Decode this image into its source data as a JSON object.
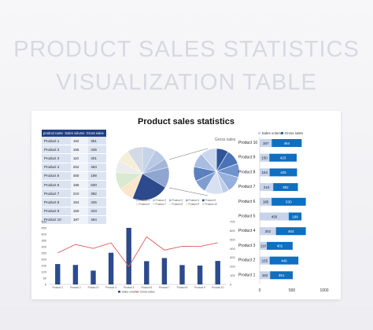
{
  "page_title": [
    "PRODUCT SALES STATISTICS",
    "VISUALIZATION TABLE"
  ],
  "dashboard": {
    "title": "Product sales statistics",
    "table": {
      "headers": [
        "product name",
        "Sales volume",
        "Gross sales"
      ],
      "rows": [
        [
          "Product 1",
          "162",
          "351"
        ],
        [
          "Product 2",
          "155",
          "445"
        ],
        [
          "Product 3",
          "110",
          "401"
        ],
        [
          "Product 4",
          "252",
          "463"
        ],
        [
          "Product 5",
          "450",
          "198"
        ],
        [
          "Product 6",
          "185",
          "530"
        ],
        [
          "Product 7",
          "210",
          "382"
        ],
        [
          "Product 8",
          "154",
          "425"
        ],
        [
          "Product 9",
          "150",
          "423"
        ],
        [
          "Product 10",
          "187",
          "464"
        ]
      ]
    }
  },
  "chart_data": [
    {
      "type": "pie",
      "title": "",
      "categories": [
        "Product 1",
        "Product 2",
        "Product 3",
        "Product 4",
        "Product 5",
        "Product 6",
        "Product 7",
        "Product 8",
        "Product 9",
        "Product 10"
      ],
      "values": [
        162,
        155,
        110,
        252,
        450,
        185,
        210,
        154,
        150,
        187
      ],
      "colors": [
        "#c6d4ea",
        "#b9c8e4",
        "#a4b7da",
        "#8fa6d0",
        "#2c4a8c",
        "#fbe6cc",
        "#d9ead0",
        "#ececec",
        "#f6efd8",
        "#d4d9e6"
      ],
      "legend": "bottom"
    },
    {
      "type": "pie",
      "title": "Gross sales",
      "categories": [
        "Product 1",
        "Product 2",
        "Product 3",
        "Product 4",
        "Product 5",
        "Product 6",
        "Product 7",
        "Product 8",
        "Product 9",
        "Product 10"
      ],
      "values": [
        351,
        445,
        401,
        463,
        198,
        530,
        382,
        425,
        423,
        464
      ],
      "colors": [
        "#2f5597",
        "#4a73b8",
        "#6f93cc",
        "#95b0dc",
        "#bccce9",
        "#d8e1f1",
        "#7f9ed0",
        "#5a80be",
        "#a9bde2",
        "#c9d6ee"
      ]
    },
    {
      "type": "bar",
      "orientation": "horizontal",
      "categories": [
        "Product 10",
        "Product 9",
        "Product 8",
        "Product 7",
        "Product 6",
        "Product 5",
        "Product 4",
        "Product 3",
        "Product 2",
        "Product 1"
      ],
      "series": [
        {
          "name": "Sales volume",
          "values": [
            187,
            150,
            154,
            210,
            185,
            450,
            252,
            110,
            155,
            162
          ],
          "color": "#c6d3ea"
        },
        {
          "name": "Gross sales",
          "values": [
            464,
            423,
            425,
            382,
            530,
            198,
            463,
            401,
            445,
            351
          ],
          "color": "#0f6fc0"
        }
      ],
      "stacked": true,
      "xlim": [
        0,
        1000
      ],
      "xticks": [
        0,
        500,
        1000
      ],
      "legend": "top"
    },
    {
      "type": "bar+line",
      "categories": [
        "Product 1",
        "Product 2",
        "Product 3",
        "Product 4",
        "Product 5",
        "Product 6",
        "Product 7",
        "Product 8",
        "Product 9",
        "Product 10"
      ],
      "series": [
        {
          "name": "Sales volume",
          "type": "bar",
          "axis": "left",
          "values": [
            162,
            155,
            110,
            252,
            450,
            185,
            210,
            154,
            150,
            187
          ],
          "color": "#2c4a8c"
        },
        {
          "name": "Gross sales",
          "type": "line",
          "axis": "right",
          "values": [
            351,
            445,
            401,
            463,
            198,
            530,
            382,
            425,
            423,
            464
          ],
          "color": "#e05a5a"
        }
      ],
      "ylim_left": [
        0,
        500
      ],
      "yticks_left": [
        0,
        50,
        100,
        150,
        200,
        250,
        300,
        350,
        400,
        450,
        500
      ],
      "ylim_right": [
        0,
        700
      ],
      "yticks_right": [
        0,
        100,
        200,
        300,
        400,
        500,
        600,
        700
      ],
      "legend": "bottom"
    }
  ]
}
